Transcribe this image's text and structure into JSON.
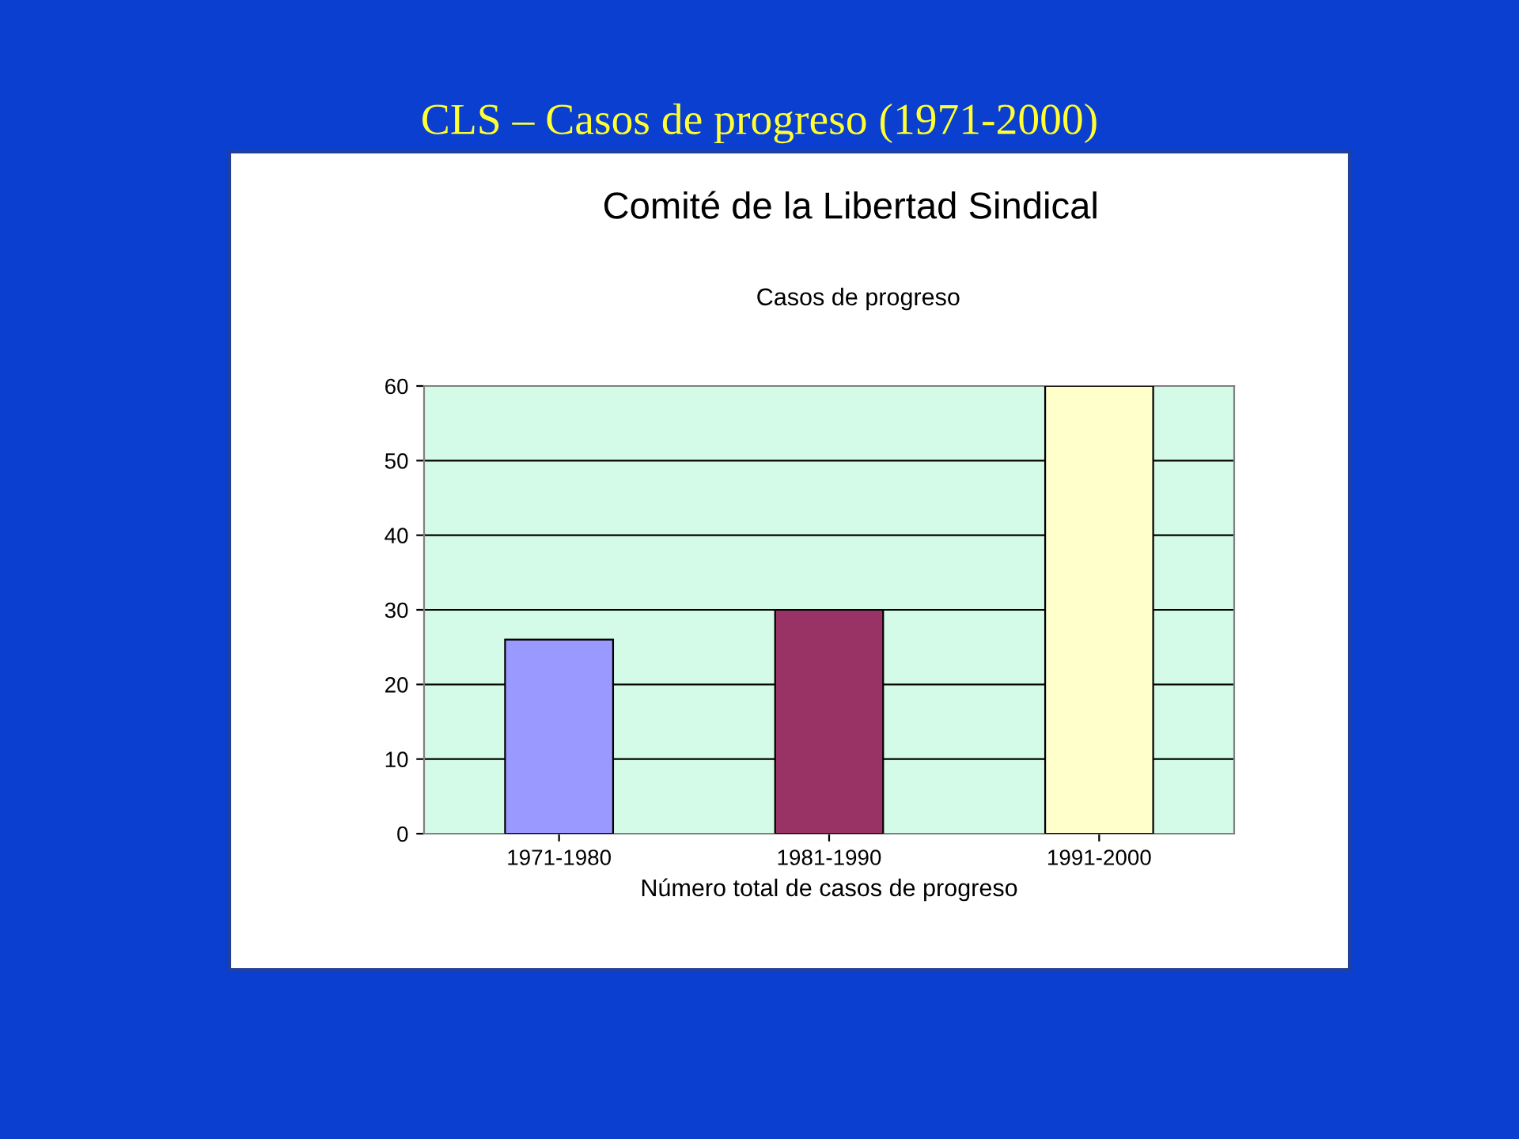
{
  "chart_data": {
    "type": "bar",
    "title": "Comité de la Libertad Sindical",
    "subtitle": "Casos de progreso",
    "xlabel": "Número total de casos de progreso",
    "annotations": [
      "CLS – Casos de progreso (1971-2000)"
    ],
    "categories": [
      "1971-1980",
      "1981-1990",
      "1991-2000"
    ],
    "values": [
      26,
      30,
      60
    ],
    "colors": [
      "#9999ff",
      "#993366",
      "#ffffcc"
    ],
    "ylim": [
      0,
      60
    ],
    "yticks": [
      0,
      10,
      20,
      30,
      40,
      50,
      60
    ],
    "grid": "y"
  }
}
